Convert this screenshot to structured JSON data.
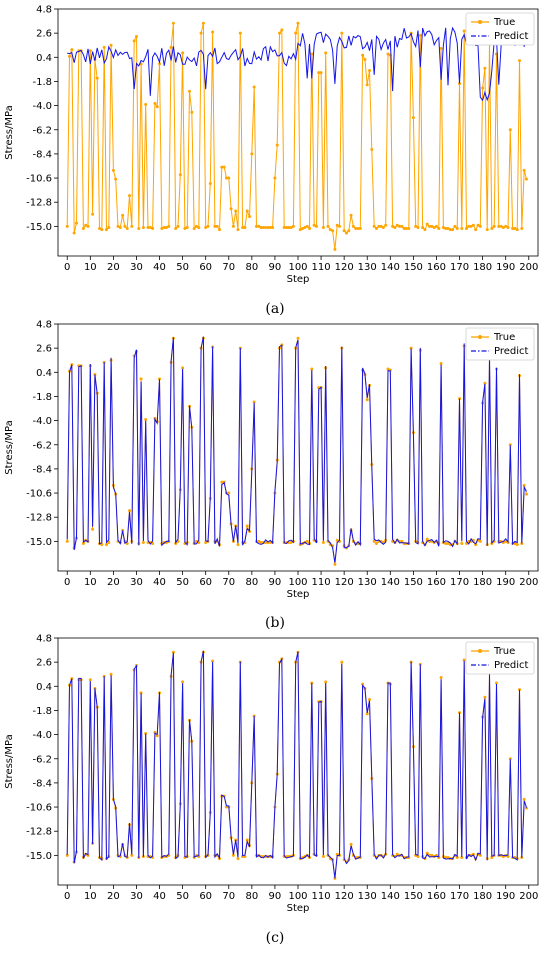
{
  "colors": {
    "true": "#FFA500",
    "predict": "#1515E8"
  },
  "chart_data": [
    {
      "type": "line",
      "caption": "(a)",
      "xlabel": "Step",
      "ylabel": "Stress/MPa",
      "xlim": [
        -4,
        204
      ],
      "ylim": [
        -17.7,
        4.8
      ],
      "xticks": [
        0,
        10,
        20,
        30,
        40,
        50,
        60,
        70,
        80,
        90,
        100,
        110,
        120,
        130,
        140,
        150,
        160,
        170,
        180,
        190,
        200
      ],
      "yticks": [
        4.8,
        2.6,
        0.4,
        -1.8,
        -4.0,
        -6.2,
        -8.4,
        -10.6,
        -12.8,
        -15.0
      ],
      "ytick_labels": [
        "4.8",
        "2.6",
        "0.4",
        "-1.8",
        "-4.0",
        "-6.2",
        "-8.4",
        "-10.6",
        "-12.8",
        "-15.0"
      ],
      "grid": false,
      "legend": "top-right",
      "series": [
        {
          "name": "True",
          "style": "solid",
          "marker": "circle",
          "values": []
        },
        {
          "name": "Predict",
          "style": "dash-dot",
          "marker": "x",
          "values": []
        }
      ]
    },
    {
      "type": "line",
      "caption": "(b)",
      "xlabel": "Step",
      "ylabel": "Stress/MPa",
      "xlim": [
        -4,
        204
      ],
      "ylim": [
        -17.7,
        4.8
      ],
      "xticks": [
        0,
        10,
        20,
        30,
        40,
        50,
        60,
        70,
        80,
        90,
        100,
        110,
        120,
        130,
        140,
        150,
        160,
        170,
        180,
        190,
        200
      ],
      "yticks": [
        4.8,
        2.6,
        0.4,
        -1.8,
        -4.0,
        -6.2,
        -8.4,
        -10.6,
        -12.8,
        -15.0
      ],
      "ytick_labels": [
        "4.8",
        "2.6",
        "0.4",
        "-1.8",
        "-4.0",
        "-6.2",
        "-8.4",
        "-10.6",
        "-12.8",
        "-15.0"
      ],
      "grid": false,
      "legend": "top-right",
      "series": [
        {
          "name": "True",
          "style": "solid",
          "marker": "circle",
          "values": []
        },
        {
          "name": "Predict",
          "style": "dash-dot",
          "marker": "x",
          "values": []
        }
      ]
    },
    {
      "type": "line",
      "caption": "(c)",
      "xlabel": "Step",
      "ylabel": "Stress/MPa",
      "xlim": [
        -4,
        204
      ],
      "ylim": [
        -17.7,
        4.8
      ],
      "xticks": [
        0,
        10,
        20,
        30,
        40,
        50,
        60,
        70,
        80,
        90,
        100,
        110,
        120,
        130,
        140,
        150,
        160,
        170,
        180,
        190,
        200
      ],
      "yticks": [
        4.8,
        2.6,
        0.4,
        -1.8,
        -4.0,
        -6.2,
        -8.4,
        -10.6,
        -12.8,
        -15.0
      ],
      "ytick_labels": [
        "4.8",
        "2.6",
        "0.4",
        "-1.8",
        "-4.0",
        "-6.2",
        "-8.4",
        "-10.6",
        "-12.8",
        "-15.0"
      ],
      "grid": false,
      "legend": "top-right",
      "series": [
        {
          "name": "True",
          "style": "solid",
          "marker": "circle",
          "values": []
        },
        {
          "name": "Predict",
          "style": "dash-dot",
          "marker": "x",
          "values": []
        }
      ]
    }
  ]
}
